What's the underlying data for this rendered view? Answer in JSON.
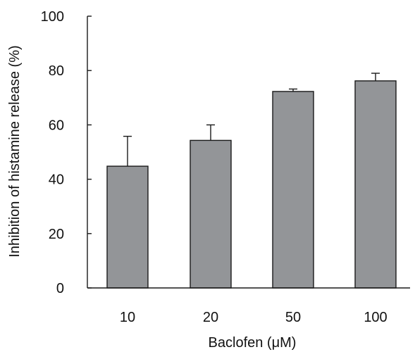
{
  "colors": {
    "bar_fill": "#939598",
    "bar_stroke": "#1a1a1a",
    "axis": "#1a1a1a",
    "text": "#111111"
  },
  "chart_data": {
    "type": "bar",
    "categories": [
      "10",
      "20",
      "50",
      "100"
    ],
    "values": [
      44.8,
      54.3,
      72.3,
      76.2
    ],
    "errors_upper": [
      11.0,
      5.7,
      0.9,
      2.8
    ],
    "title": "",
    "xlabel": "Baclofen (μM)",
    "ylabel": "Inhibition of histamine release (%)",
    "ylim": [
      0,
      100
    ],
    "yticks": [
      "0",
      "20",
      "40",
      "60",
      "80",
      "100"
    ],
    "grid": false,
    "legend": "none"
  }
}
